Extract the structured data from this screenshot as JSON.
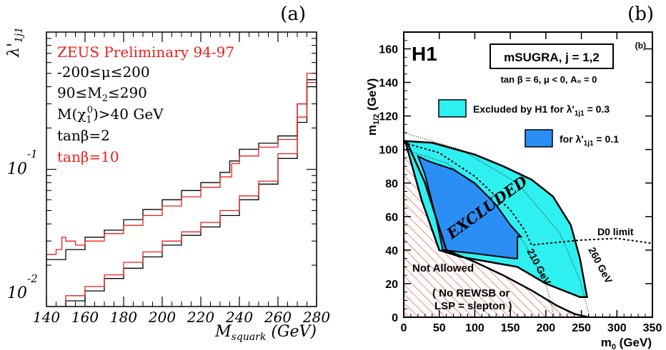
{
  "chart_data": [
    {
      "type": "line",
      "panel_label": "(a)",
      "xlabel_main": "M",
      "xlabel_sub": "squark",
      "xlabel_unit": " (GeV)",
      "ylabel_main": "λ'",
      "ylabel_sub": "1j1",
      "xlim": [
        140,
        280
      ],
      "ylim": [
        0.01,
        1
      ],
      "yscale": "log",
      "x_ticks": [
        "140",
        "160",
        "180",
        "200",
        "220",
        "240",
        "260",
        "280"
      ],
      "y_tick_labels": [
        {
          "base": "10",
          "exp": "-1",
          "value": 0.1
        },
        {
          "base": "10",
          "exp": "-2",
          "value": 0.01
        }
      ],
      "legend": [
        {
          "text": "ZEUS Preliminary 94-97",
          "color": "#e8201e"
        },
        {
          "text": "-200≤μ≤200",
          "color": "#000000"
        },
        {
          "text_main": "90≤M",
          "text_sub": "2",
          "text_tail": "≤290",
          "color": "#000000"
        },
        {
          "text_main": "M(χ",
          "text_sub": "1",
          "text_sup": "0",
          "text_tail": ")>40 GeV",
          "color": "#000000"
        },
        {
          "text": "tanβ=2",
          "color": "#000000"
        },
        {
          "text": "tanβ=10",
          "color": "#e8201e"
        }
      ],
      "series": [
        {
          "name": "tanβ=2",
          "color": "#000000",
          "band": "upper",
          "x": [
            140,
            150,
            160,
            170,
            180,
            190,
            200,
            210,
            220,
            230,
            235,
            240,
            250,
            260,
            270,
            275,
            280
          ],
          "y": [
            0.022,
            0.026,
            0.032,
            0.036,
            0.043,
            0.051,
            0.06,
            0.07,
            0.08,
            0.095,
            0.115,
            0.14,
            0.155,
            0.175,
            0.3,
            0.45,
            0.8
          ]
        },
        {
          "name": "tanβ=2",
          "color": "#000000",
          "band": "lower",
          "x": [
            140,
            150,
            160,
            170,
            180,
            190,
            200,
            210,
            220,
            230,
            240,
            250,
            260,
            270,
            275,
            280
          ],
          "y": [
            0.0085,
            0.011,
            0.013,
            0.016,
            0.019,
            0.023,
            0.028,
            0.033,
            0.038,
            0.046,
            0.06,
            0.078,
            0.12,
            0.22,
            0.4,
            0.75
          ]
        },
        {
          "name": "tanβ=10",
          "color": "#e8201e",
          "band": "upper",
          "x": [
            140,
            145,
            148,
            150,
            155,
            160,
            170,
            180,
            190,
            200,
            210,
            220,
            230,
            236,
            240,
            250,
            260,
            270,
            275,
            280
          ],
          "y": [
            0.024,
            0.026,
            0.032,
            0.03,
            0.028,
            0.03,
            0.034,
            0.039,
            0.046,
            0.054,
            0.063,
            0.074,
            0.088,
            0.11,
            0.125,
            0.145,
            0.165,
            0.3,
            0.5,
            0.85
          ]
        },
        {
          "name": "tanβ=10",
          "color": "#e8201e",
          "band": "lower",
          "x": [
            140,
            150,
            160,
            170,
            180,
            190,
            200,
            210,
            220,
            230,
            240,
            250,
            260,
            270,
            275,
            280
          ],
          "y": [
            0.0095,
            0.012,
            0.014,
            0.017,
            0.021,
            0.025,
            0.03,
            0.035,
            0.041,
            0.05,
            0.064,
            0.082,
            0.13,
            0.24,
            0.43,
            0.8
          ]
        }
      ]
    },
    {
      "type": "area",
      "panel_label": "(b)",
      "panel_label_inner": "(b)",
      "logo": "H1",
      "title": "mSUGRA, j = 1,2",
      "subtitle": "tan β = 6, μ < 0, A₀ = 0",
      "xlabel_main": "m",
      "xlabel_sub": "0",
      "xlabel_unit": " (GeV)",
      "ylabel_main": "m",
      "ylabel_sub": "1/2",
      "ylabel_unit": " (GeV)",
      "xlim": [
        0,
        350
      ],
      "ylim": [
        0,
        170
      ],
      "x_ticks": [
        "0",
        "50",
        "100",
        "150",
        "200",
        "250",
        "300",
        "350"
      ],
      "y_ticks": [
        "0",
        "20",
        "40",
        "60",
        "80",
        "100",
        "120",
        "140",
        "160"
      ],
      "legend": [
        {
          "text_main": "Excluded by H1 for λ'",
          "text_sub": "1j1",
          "text_tail": " = 0.3",
          "color": "#2ff0f0"
        },
        {
          "text_main": "for λ'",
          "text_sub": "1j1",
          "text_tail": " = 0.1",
          "color": "#2a8ef5"
        }
      ],
      "annotations": {
        "excluded": "EXCLUDED",
        "not_allowed": "Not Allowed",
        "no_rewsb_1": "( No REWSB or",
        "no_rewsb_2": "LSP = slepton )",
        "d0": "D0 limit",
        "c210": "210 GeV",
        "c260": "260 GeV"
      },
      "regions": {
        "not_allowed_boundary": {
          "x": [
            0,
            5,
            30,
            60,
            100,
            140,
            180,
            215,
            240,
            260
          ],
          "y": [
            105,
            104,
            80,
            40,
            33,
            25,
            16,
            7,
            2,
            0
          ]
        },
        "excluded_03": {
          "x": [
            2,
            40,
            100,
            140,
            180,
            210,
            235,
            248,
            258,
            248,
            200,
            160,
            120,
            80,
            50,
            25,
            2
          ],
          "y": [
            105,
            104,
            97,
            90,
            82,
            72,
            55,
            35,
            12,
            12,
            20,
            30,
            33,
            36,
            40,
            70,
            105
          ]
        },
        "excluded_01": {
          "x": [
            20,
            35,
            70,
            100,
            130,
            150,
            165,
            160,
            160,
            155,
            100,
            55,
            45,
            30,
            20
          ],
          "y": [
            96,
            93,
            88,
            80,
            67,
            55,
            48,
            48,
            35,
            35,
            38,
            40,
            60,
            85,
            96
          ]
        },
        "d0_limit": {
          "x": [
            0,
            50,
            100,
            150,
            170,
            180,
            200,
            250,
            300,
            350
          ],
          "y": [
            104,
            98,
            84,
            64,
            52,
            43,
            44,
            46,
            47,
            44
          ]
        },
        "contour_210": {
          "x": [
            0,
            60,
            120,
            170,
            200,
            212
          ],
          "y": [
            100,
            92,
            72,
            44,
            20,
            0
          ]
        },
        "contour_260": {
          "x": [
            0,
            80,
            160,
            220,
            248,
            262
          ],
          "y": [
            110,
            100,
            80,
            50,
            22,
            0
          ]
        }
      }
    }
  ]
}
